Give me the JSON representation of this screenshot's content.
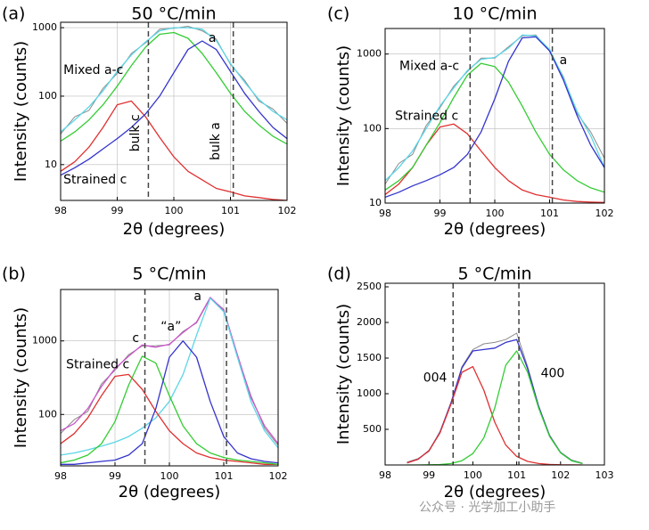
{
  "chart_data": [
    {
      "type": "line",
      "label": "(a)",
      "title": "50 °C/min",
      "xlabel": "2θ (degrees)",
      "ylabel": "Intensity (counts)",
      "log_y": true,
      "grid": true,
      "xlim": [
        98,
        102
      ],
      "xticks": [
        98,
        99,
        100,
        101,
        102
      ],
      "ylim": [
        3,
        1200
      ],
      "yticks": [
        10,
        100,
        1000
      ],
      "vlines": [
        99.55,
        101.05
      ],
      "annotations": [
        "a",
        "Mixed a-c",
        "bulk c",
        "bulk a",
        "Strained c"
      ],
      "x": [
        98,
        98.25,
        98.5,
        98.75,
        99,
        99.25,
        99.5,
        99.75,
        100,
        100.25,
        100.5,
        100.75,
        101,
        101.25,
        101.5,
        101.75,
        102
      ],
      "series": [
        {
          "color": "#8a8a8a",
          "values": [
            28,
            50,
            62,
            130,
            215,
            420,
            600,
            950,
            980,
            1050,
            900,
            680,
            290,
            170,
            85,
            65,
            40
          ]
        },
        {
          "color": "#5bd6e6",
          "values": [
            30,
            45,
            70,
            120,
            230,
            400,
            620,
            900,
            1000,
            1000,
            950,
            650,
            300,
            160,
            90,
            60,
            45
          ]
        },
        {
          "color": "#e03030",
          "values": [
            8,
            11,
            18,
            35,
            75,
            85,
            50,
            25,
            13,
            8,
            6,
            4.5,
            4,
            3.5,
            3.3,
            3.1,
            3
          ]
        },
        {
          "color": "#33cc33",
          "values": [
            22,
            30,
            45,
            75,
            140,
            280,
            520,
            800,
            850,
            700,
            420,
            220,
            110,
            60,
            38,
            26,
            20
          ]
        },
        {
          "color": "#3333cc",
          "values": [
            7,
            9,
            12,
            17,
            24,
            35,
            55,
            100,
            220,
            480,
            640,
            480,
            230,
            110,
            60,
            35,
            24
          ]
        }
      ]
    },
    {
      "type": "line",
      "label": "(b)",
      "title": "5 °C/min",
      "xlabel": "2θ (degrees)",
      "ylabel": "Intensity (counts)",
      "log_y": true,
      "grid": true,
      "xlim": [
        98,
        102
      ],
      "xticks": [
        98,
        99,
        100,
        101,
        102
      ],
      "ylim": [
        20,
        5000
      ],
      "yticks": [
        100,
        1000
      ],
      "vlines": [
        99.55,
        101.05
      ],
      "annotations": [
        "Strained c",
        "c",
        "“a”",
        "a"
      ],
      "x": [
        98,
        98.25,
        98.5,
        98.75,
        99,
        99.25,
        99.5,
        99.75,
        100,
        100.25,
        100.5,
        100.75,
        101,
        101.25,
        101.5,
        101.75,
        102
      ],
      "series": [
        {
          "color": "#8a8a8a",
          "values": [
            55,
            85,
            110,
            260,
            400,
            650,
            850,
            860,
            880,
            1350,
            1750,
            3800,
            2700,
            620,
            180,
            65,
            38
          ]
        },
        {
          "color": "#cc55cc",
          "values": [
            60,
            75,
            120,
            240,
            420,
            620,
            880,
            820,
            900,
            1300,
            1800,
            3900,
            2600,
            650,
            170,
            70,
            40
          ]
        },
        {
          "color": "#5bd6e6",
          "values": [
            28,
            30,
            33,
            37,
            42,
            50,
            65,
            90,
            150,
            350,
            1200,
            3800,
            2500,
            600,
            150,
            60,
            35
          ]
        },
        {
          "color": "#e03030",
          "values": [
            40,
            55,
            90,
            180,
            330,
            350,
            220,
            110,
            60,
            40,
            30,
            26,
            24,
            23,
            22,
            21,
            21
          ]
        },
        {
          "color": "#33cc33",
          "values": [
            22,
            24,
            28,
            40,
            80,
            250,
            620,
            500,
            180,
            70,
            40,
            30,
            26,
            24,
            23,
            22,
            21
          ]
        },
        {
          "color": "#3333cc",
          "values": [
            21,
            21,
            22,
            23,
            24,
            28,
            40,
            120,
            600,
            1000,
            600,
            150,
            50,
            30,
            25,
            23,
            22
          ]
        }
      ]
    },
    {
      "type": "line",
      "label": "(c)",
      "title": "10 °C/min",
      "xlabel": "2θ (degrees)",
      "ylabel": "Intensity (counts)",
      "log_y": true,
      "grid": true,
      "xlim": [
        98,
        102
      ],
      "xticks": [
        98,
        99,
        100,
        101,
        102
      ],
      "ylim": [
        10,
        2200
      ],
      "yticks": [
        10,
        100,
        1000
      ],
      "vlines": [
        99.55,
        101.05
      ],
      "annotations": [
        "Mixed a-c",
        "Strained c",
        "a"
      ],
      "x": [
        98,
        98.25,
        98.5,
        98.75,
        99,
        99.25,
        99.5,
        99.75,
        100,
        100.25,
        100.5,
        100.75,
        101,
        101.25,
        101.5,
        101.75,
        102
      ],
      "series": [
        {
          "color": "#8a8a8a",
          "values": [
            18,
            34,
            45,
            110,
            190,
            370,
            580,
            880,
            880,
            1250,
            1750,
            1800,
            1100,
            500,
            160,
            90,
            40
          ]
        },
        {
          "color": "#5bd6e6",
          "values": [
            20,
            30,
            50,
            100,
            200,
            350,
            600,
            850,
            900,
            1200,
            1800,
            1750,
            1150,
            480,
            170,
            80,
            30
          ]
        },
        {
          "color": "#e03030",
          "values": [
            13,
            18,
            30,
            60,
            105,
            115,
            85,
            50,
            30,
            20,
            15,
            13,
            12,
            11,
            10.5,
            10.3,
            10.2
          ]
        },
        {
          "color": "#33cc33",
          "values": [
            15,
            20,
            30,
            60,
            120,
            260,
            520,
            750,
            680,
            420,
            200,
            90,
            45,
            28,
            20,
            16,
            14
          ]
        },
        {
          "color": "#3333cc",
          "values": [
            12,
            14,
            17,
            20,
            24,
            30,
            45,
            90,
            250,
            800,
            1650,
            1700,
            1100,
            450,
            150,
            60,
            30
          ]
        }
      ]
    },
    {
      "type": "line",
      "label": "(d)",
      "title": "5 °C/min",
      "xlabel": "2θ (degrees)",
      "ylabel": "Intensity (counts)",
      "log_y": false,
      "grid": false,
      "xlim": [
        98,
        103
      ],
      "xticks": [
        98,
        99,
        100,
        101,
        102,
        103
      ],
      "ylim": [
        0,
        2550
      ],
      "yticks": [
        500,
        1000,
        1500,
        2000,
        2500
      ],
      "vlines": [
        99.55,
        101.05
      ],
      "annotations": [
        "004",
        "400"
      ],
      "x": [
        98.5,
        98.75,
        99,
        99.25,
        99.5,
        99.75,
        100,
        100.25,
        100.5,
        100.75,
        101,
        101.25,
        101.5,
        101.75,
        102,
        102.25,
        102.5
      ],
      "series": [
        {
          "color": "#8a8a8a",
          "values": [
            40,
            90,
            190,
            470,
            860,
            1380,
            1620,
            1700,
            1720,
            1760,
            1850,
            1380,
            830,
            420,
            180,
            70,
            25
          ]
        },
        {
          "color": "#3333cc",
          "values": [
            30,
            80,
            202,
            456,
            870,
            1360,
            1600,
            1620,
            1640,
            1720,
            1760,
            1350,
            820,
            408,
            173,
            61,
            20
          ]
        },
        {
          "color": "#e03030",
          "values": [
            30,
            80,
            200,
            450,
            850,
            1300,
            1380,
            1050,
            600,
            280,
            120,
            50,
            20,
            8,
            3,
            1,
            0
          ]
        },
        {
          "color": "#33cc33",
          "values": [
            0,
            0,
            2,
            6,
            20,
            60,
            160,
            380,
            800,
            1400,
            1600,
            1300,
            800,
            400,
            170,
            60,
            20
          ]
        }
      ]
    }
  ],
  "watermark": "公众号 · 光学加工小助手"
}
